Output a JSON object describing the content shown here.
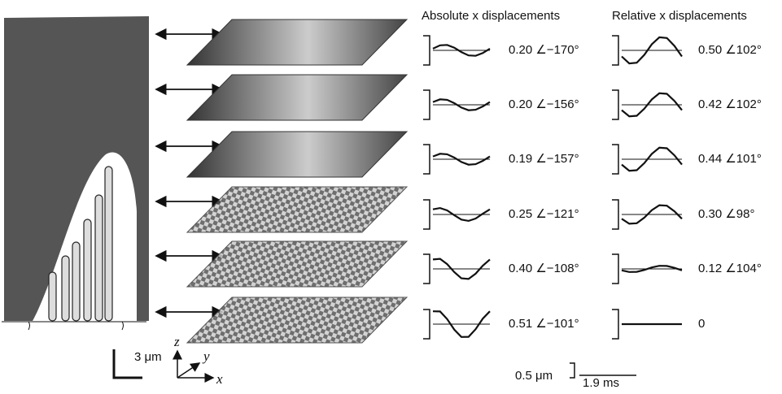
{
  "headings": {
    "absolute": "Absolute x displacements",
    "relative": "Relative x displacements"
  },
  "rows": [
    {
      "absolute": "0.20 ∠−170°",
      "relative": "0.50 ∠102°"
    },
    {
      "absolute": "0.20 ∠−156°",
      "relative": "0.42 ∠102°"
    },
    {
      "absolute": "0.19 ∠−157°",
      "relative": "0.44 ∠101°"
    },
    {
      "absolute": "0.25 ∠−121°",
      "relative": "0.30 ∠98°"
    },
    {
      "absolute": "0.40 ∠−108°",
      "relative": "0.12 ∠104°"
    },
    {
      "absolute": "0.51 ∠−101°",
      "relative": "0"
    }
  ],
  "scale": {
    "length": "3 μm",
    "displacement": "0.5 μm",
    "time": "1.9 ms"
  },
  "axes": {
    "z": "z",
    "y": "y",
    "x": "x"
  }
}
